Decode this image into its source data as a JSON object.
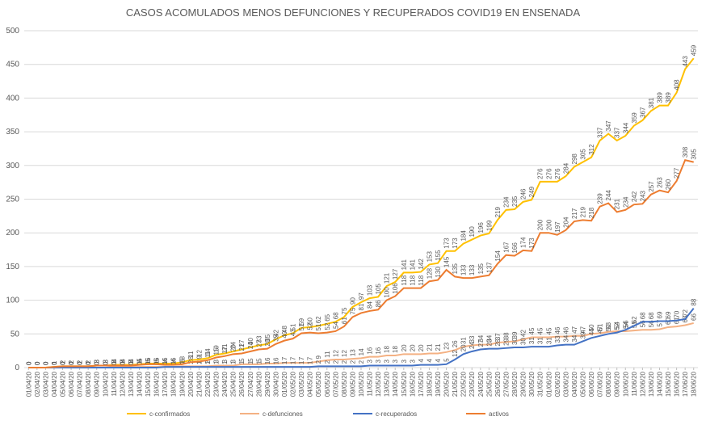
{
  "chart_data": {
    "type": "line",
    "title": "CASOS ACOMULADOS MENOS DEFUNCIONES Y RECUPERADOS COVID19 EN ENSENADA",
    "categories": [
      "01/04/20",
      "02/04/20",
      "03/04/20",
      "04/04/20",
      "05/04/20",
      "06/04/20",
      "07/04/20",
      "08/04/20",
      "09/04/20",
      "10/04/20",
      "11/04/20",
      "12/04/20",
      "13/04/20",
      "14/04/20",
      "15/04/20",
      "16/04/20",
      "17/04/20",
      "18/04/20",
      "19/04/20",
      "20/04/20",
      "21/04/20",
      "22/04/20",
      "23/04/20",
      "24/04/20",
      "25/04/20",
      "26/04/20",
      "27/04/20",
      "28/04/20",
      "29/04/20",
      "30/04/20",
      "01/05/20",
      "02/05/20",
      "03/05/20",
      "04/05/20",
      "05/05/20",
      "06/05/20",
      "07/05/20",
      "08/05/20",
      "09/05/20",
      "10/05/20",
      "11/05/20",
      "12/05/20",
      "13/05/20",
      "14/05/20",
      "15/05/20",
      "16/05/20",
      "17/05/20",
      "18/05/20",
      "19/05/20",
      "20/05/20",
      "21/05/20",
      "22/05/20",
      "23/05/20",
      "24/05/20",
      "25/05/20",
      "26/05/20",
      "27/05/20",
      "28/05/20",
      "29/05/20",
      "30/05/20",
      "31/05/20",
      "01/06/20",
      "02/06/20",
      "03/06/20",
      "04/06/20",
      "05/06/20",
      "06/06/20",
      "07/06/20",
      "08/06/20",
      "09/06/20",
      "10/06/20",
      "11/06/20",
      "12/06/20",
      "13/06/20",
      "14/06/20",
      "15/06/20",
      "16/06/20",
      "17/06/20",
      "18/06/20"
    ],
    "series": [
      {
        "name": "c-confirmados",
        "color": "#FFC000",
        "values": [
          0,
          0,
          0,
          1,
          2,
          2,
          2,
          2,
          3,
          3,
          4,
          4,
          4,
          5,
          6,
          6,
          6,
          6,
          8,
          11,
          12,
          14,
          19,
          21,
          24,
          27,
          30,
          33,
          35,
          42,
          48,
          51,
          59,
          60,
          62,
          65,
          68,
          75,
          90,
          97,
          103,
          105,
          121,
          127,
          141,
          141,
          142,
          153,
          155,
          173,
          173,
          184,
          190,
          196,
          199,
          219,
          234,
          235,
          246,
          249,
          276,
          276,
          276,
          284,
          298,
          305,
          312,
          337,
          347,
          337,
          344,
          359,
          367,
          381,
          389,
          389,
          408,
          443,
          459
        ]
      },
      {
        "name": "c-defunciones",
        "color": "#F4B183",
        "values": [
          0,
          0,
          0,
          0,
          0,
          0,
          0,
          0,
          0,
          0,
          1,
          1,
          1,
          1,
          1,
          1,
          1,
          1,
          2,
          2,
          2,
          2,
          3,
          3,
          3,
          5,
          5,
          5,
          6,
          6,
          7,
          7,
          7,
          7,
          9,
          11,
          12,
          12,
          13,
          14,
          16,
          16,
          18,
          18,
          20,
          20,
          20,
          21,
          21,
          23,
          26,
          31,
          33,
          34,
          34,
          37,
          38,
          39,
          42,
          45,
          45,
          45,
          46,
          46,
          47,
          47,
          50,
          51,
          53,
          54,
          54,
          55,
          56,
          56,
          57,
          60,
          61,
          63,
          66
        ]
      },
      {
        "name": "c-recuperados",
        "color": "#4472C4",
        "values": [
          0,
          0,
          0,
          0,
          0,
          0,
          0,
          0,
          0,
          0,
          0,
          0,
          0,
          0,
          0,
          0,
          1,
          1,
          1,
          1,
          1,
          1,
          1,
          1,
          1,
          1,
          1,
          1,
          1,
          1,
          1,
          1,
          1,
          1,
          2,
          2,
          2,
          2,
          2,
          2,
          3,
          3,
          3,
          3,
          3,
          3,
          4,
          4,
          4,
          5,
          12,
          20,
          24,
          27,
          28,
          28,
          29,
          30,
          30,
          31,
          31,
          31,
          33,
          34,
          34,
          39,
          44,
          47,
          50,
          52,
          56,
          62,
          68,
          68,
          69,
          69,
          70,
          72,
          88
        ]
      },
      {
        "name": "activos",
        "color": "#ED7D31",
        "values": [
          0,
          0,
          0,
          1,
          2,
          2,
          2,
          2,
          3,
          3,
          3,
          3,
          3,
          4,
          5,
          5,
          4,
          4,
          5,
          8,
          9,
          11,
          15,
          17,
          20,
          21,
          24,
          27,
          28,
          35,
          40,
          43,
          51,
          52,
          51,
          52,
          54,
          61,
          75,
          81,
          84,
          86,
          100,
          106,
          118,
          118,
          118,
          128,
          130,
          145,
          135,
          133,
          133,
          135,
          137,
          154,
          167,
          166,
          174,
          173,
          200,
          200,
          197,
          204,
          217,
          219,
          218,
          239,
          244,
          231,
          234,
          242,
          243,
          257,
          263,
          260,
          277,
          308,
          305
        ]
      }
    ],
    "ylim": [
      0,
      500
    ],
    "yticks": [
      0,
      50,
      100,
      150,
      200,
      250,
      300,
      350,
      400,
      450,
      500
    ],
    "grid": true,
    "legend": "bottom"
  }
}
